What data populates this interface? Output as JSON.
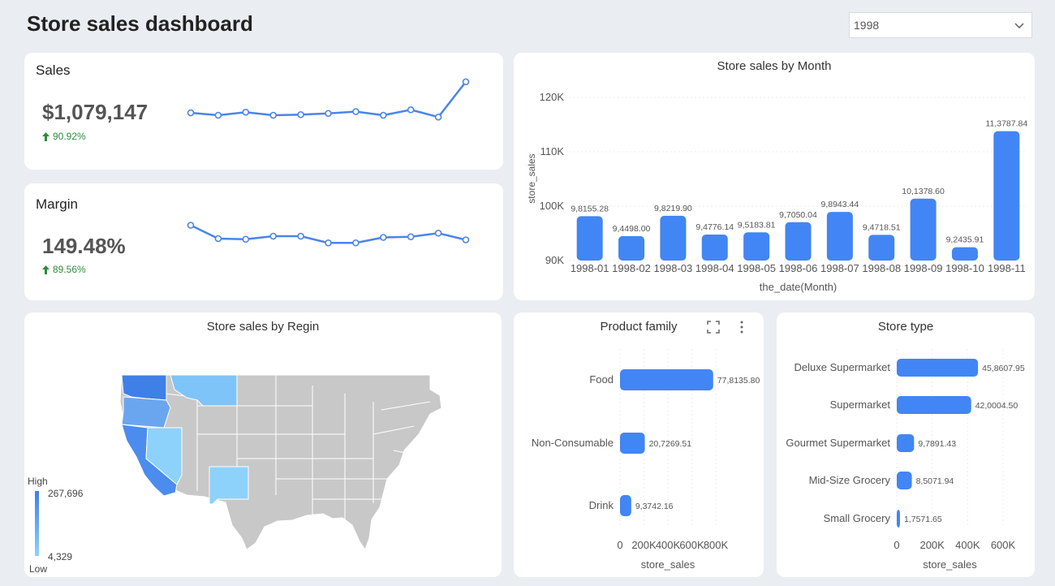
{
  "page": {
    "title": "Store sales dashboard",
    "year_selected": "1998"
  },
  "kpis": {
    "sales": {
      "title": "Sales",
      "value": "$1,079,147",
      "delta": "90.92%",
      "sparkline": [
        48,
        44,
        49,
        44,
        45,
        47,
        50,
        44,
        53,
        41,
        99
      ]
    },
    "margin": {
      "title": "Margin",
      "value": "149.48%",
      "delta": "89.56%",
      "sparkline": [
        78,
        56,
        55,
        60,
        60,
        49,
        49,
        58,
        59,
        65,
        54
      ]
    }
  },
  "chart_data": [
    {
      "type": "bar",
      "title": "Store sales by Month",
      "xlabel": "the_date(Month)",
      "ylabel": "store_sales",
      "ylim": [
        90000,
        120000
      ],
      "yticks": [
        90000,
        100000,
        110000,
        120000
      ],
      "ytick_labels": [
        "90K",
        "100K",
        "110K",
        "120K"
      ],
      "categories": [
        "1998-01",
        "1998-02",
        "1998-03",
        "1998-04",
        "1998-05",
        "1998-06",
        "1998-07",
        "1998-08",
        "1998-09",
        "1998-10",
        "1998-11"
      ],
      "values": [
        98155.28,
        94498.0,
        98219.9,
        94776.14,
        95183.81,
        97050.04,
        98943.44,
        94718.51,
        101378.6,
        92435.91,
        113787.84
      ],
      "value_labels": [
        "9,8155.28",
        "9,4498.00",
        "9,8219.90",
        "9,4776.14",
        "9,5183.81",
        "9,7050.04",
        "9,8943.44",
        "9,4718.51",
        "10,1378.60",
        "9,2435.91",
        "11,3787.84"
      ],
      "color": "#4285f4"
    },
    {
      "type": "bar",
      "orientation": "horizontal",
      "title": "Product family",
      "xlabel": "store_sales",
      "xlim": [
        0,
        800000
      ],
      "xticks": [
        0,
        200000,
        400000,
        600000,
        800000
      ],
      "xtick_labels": [
        "0",
        "200K",
        "400K",
        "600K",
        "800K"
      ],
      "categories": [
        "Food",
        "Non-Consumable",
        "Drink"
      ],
      "values": [
        778135.8,
        207269.51,
        93742.16
      ],
      "value_labels": [
        "77,8135.80",
        "20,7269.51",
        "9,3742.16"
      ],
      "color": "#4285f4"
    },
    {
      "type": "bar",
      "orientation": "horizontal",
      "title": "Store type",
      "xlabel": "store_sales",
      "xlim": [
        0,
        600000
      ],
      "xticks": [
        0,
        200000,
        400000,
        600000
      ],
      "xtick_labels": [
        "0",
        "200K",
        "400K",
        "600K"
      ],
      "categories": [
        "Deluxe Supermarket",
        "Supermarket",
        "Gourmet Supermarket",
        "Mid-Size Grocery",
        "Small Grocery"
      ],
      "values": [
        458607.95,
        420004.5,
        97891.43,
        85071.94,
        17571.65
      ],
      "value_labels": [
        "45,8607.95",
        "42,0004.50",
        "9,7891.43",
        "8,5071.94",
        "1,7571.65"
      ],
      "color": "#4285f4"
    },
    {
      "type": "heatmap",
      "title": "Store sales by Regin",
      "legend": {
        "high_label": "High",
        "low_label": "Low",
        "max": "267,696",
        "min": "4,329"
      },
      "colors": {
        "high": "#3f7fe8",
        "low": "#8dd2fb",
        "no_data": "#c8c8c8"
      },
      "regions": [
        "Washington",
        "Oregon",
        "California",
        "Nevada",
        "Montana",
        "New Mexico"
      ]
    }
  ]
}
